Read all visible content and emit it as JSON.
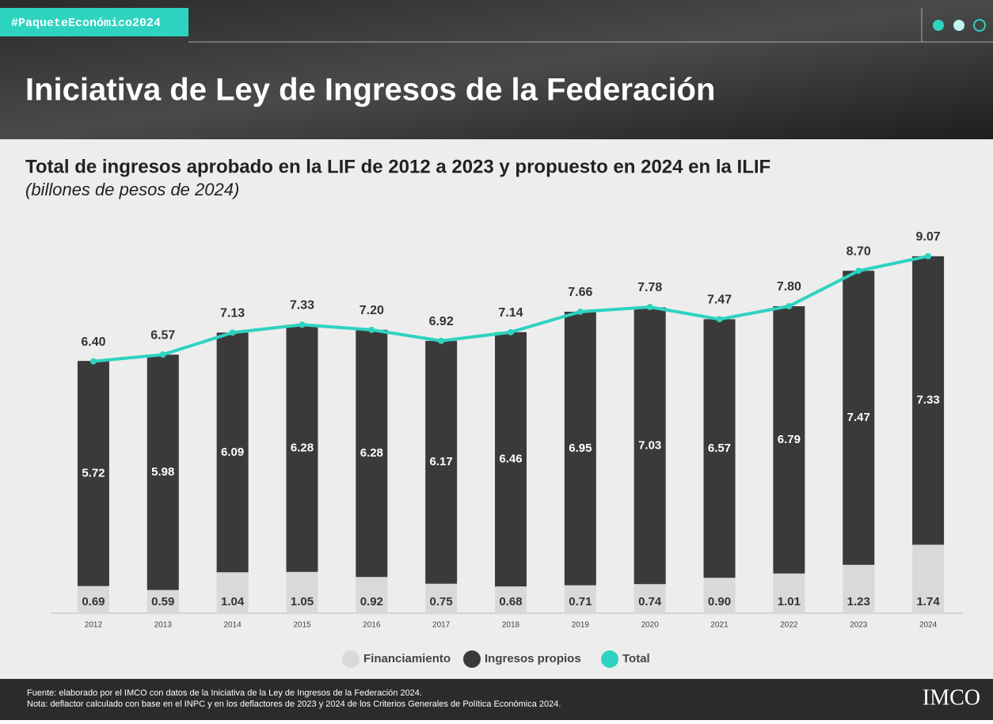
{
  "header": {
    "tag": "#PaqueteEconómico2024",
    "title": "Iniciativa de Ley de Ingresos de la Federación"
  },
  "chart_data": {
    "type": "stacked_bar_line",
    "title": "Total de ingresos aprobado en la LIF de 2012 a 2023 y propuesto en 2024 en la ILIF",
    "subtitle": "(billones de pesos de 2024)",
    "categories": [
      "2012",
      "2013",
      "2014",
      "2015",
      "2016",
      "2017",
      "2018",
      "2019",
      "2020",
      "2021",
      "2022",
      "2023",
      "2024"
    ],
    "ylim": [
      0,
      9.75
    ],
    "series": [
      {
        "name": "Financiamiento",
        "color": "#d9d9d9",
        "kind": "bar",
        "values": [
          0.69,
          0.59,
          1.04,
          1.05,
          0.92,
          0.75,
          0.68,
          0.71,
          0.74,
          0.9,
          1.01,
          1.23,
          1.74
        ],
        "value_labels": [
          "0.69",
          "0.59",
          "1.04",
          "1.05",
          "0.92",
          "0.75",
          "0.68",
          "0.71",
          "0.74",
          "0.90",
          "1.01",
          "1.23",
          "1.74"
        ]
      },
      {
        "name": "Ingresos propios",
        "color": "#3a3a3a",
        "kind": "bar",
        "values": [
          5.72,
          5.98,
          6.09,
          6.28,
          6.28,
          6.17,
          6.46,
          6.95,
          7.03,
          6.57,
          6.79,
          7.47,
          7.33
        ],
        "value_labels": [
          "5.72",
          "5.98",
          "6.09",
          "6.28",
          "6.28",
          "6.17",
          "6.46",
          "6.95",
          "7.03",
          "6.57",
          "6.79",
          "7.47",
          "7.33"
        ]
      },
      {
        "name": "Total",
        "color": "#2ed3c0",
        "kind": "line",
        "values": [
          6.4,
          6.57,
          7.13,
          7.33,
          7.2,
          6.92,
          7.14,
          7.66,
          7.78,
          7.47,
          7.8,
          8.7,
          9.07
        ],
        "value_labels": [
          "6.40",
          "6.57",
          "7.13",
          "7.33",
          "7.20",
          "6.92",
          "7.14",
          "7.66",
          "7.78",
          "7.47",
          "7.80",
          "8.70",
          "9.07"
        ]
      }
    ]
  },
  "footer": {
    "source": "Fuente: elaborado por el IMCO con datos de la Iniciativa de la Ley de Ingresos de la Federación 2024.",
    "note": "Nota: deflactor calculado con base en el INPC y en los deflactores de 2023 y 2024 de los Criterios Generales de Política Económica 2024.",
    "logo": "IMCO"
  }
}
